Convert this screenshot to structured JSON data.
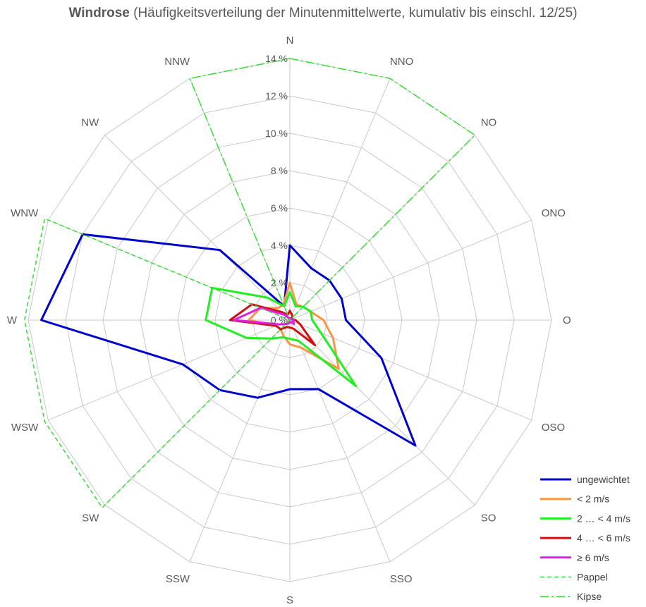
{
  "title_bold": "Windrose",
  "title_rest": " (Häufigkeitsverteilung der Minutenmittelwerte, kumulativ bis einschl. 12/25)",
  "chart_data": {
    "type": "radar",
    "directions": [
      "N",
      "NNO",
      "NO",
      "ONO",
      "O",
      "OSO",
      "SO",
      "SSO",
      "S",
      "SSW",
      "SW",
      "WSW",
      "W",
      "WNW",
      "NW",
      "NNW"
    ],
    "radial_ticks": [
      "0 %",
      "2 %",
      "4 %",
      "6 %",
      "8 %",
      "10 %",
      "12 %",
      "14 %"
    ],
    "rmax": 14,
    "grid": true,
    "legend_position": "bottom-right",
    "series": [
      {
        "name": "ungewichtet",
        "color": "#0000CC",
        "dash": "solid",
        "values": [
          4.0,
          3.0,
          3.0,
          3.0,
          3.0,
          5.3,
          9.5,
          4.0,
          3.7,
          4.5,
          5.3,
          6.2,
          13.3,
          12.0,
          5.3,
          0.8
        ]
      },
      {
        "name": "< 2 m/s",
        "color": "#F79646",
        "dash": "solid",
        "values": [
          2.0,
          0.9,
          1.0,
          1.2,
          1.8,
          2.5,
          3.7,
          1.6,
          1.3,
          0.9,
          0.7,
          0.8,
          2.2,
          1.7,
          0.9,
          0.9
        ]
      },
      {
        "name": "2 … < 4 m/s",
        "color": "#22EE22",
        "dash": "solid",
        "values": [
          1.5,
          0.8,
          1.0,
          1.2,
          1.2,
          1.8,
          5.0,
          1.2,
          1.0,
          1.0,
          1.4,
          2.5,
          4.5,
          4.5,
          1.7,
          0.8
        ]
      },
      {
        "name": "4 … < 6 m/s",
        "color": "#D01010",
        "dash": "solid",
        "values": [
          0.5,
          0.3,
          0.2,
          0.1,
          0.3,
          0.6,
          1.9,
          0.5,
          0.4,
          0.4,
          0.7,
          0.8,
          3.2,
          2.2,
          0.6,
          0.3
        ]
      },
      {
        "name": "≥ 6 m/s",
        "color": "#E020E0",
        "dash": "solid",
        "values": [
          0.1,
          0.1,
          0.1,
          0.1,
          0.2,
          0.2,
          0.3,
          0.1,
          0.1,
          0.2,
          0.3,
          0.6,
          3.0,
          1.7,
          0.4,
          0.1
        ]
      },
      {
        "name": "Pappel",
        "color": "#33DD33",
        "dash": "dashed",
        "values": [
          0,
          0,
          0,
          0,
          0,
          0,
          0,
          0,
          0,
          0,
          14.2,
          14.2,
          14.2,
          14.2,
          0,
          0
        ]
      },
      {
        "name": "Kipse",
        "color": "#33DD33",
        "dash": "dashdot",
        "values": [
          14.0,
          14.0,
          14.0,
          0,
          0,
          0,
          0,
          0,
          0,
          0,
          0,
          0,
          0,
          0,
          0,
          14.0
        ]
      }
    ]
  }
}
